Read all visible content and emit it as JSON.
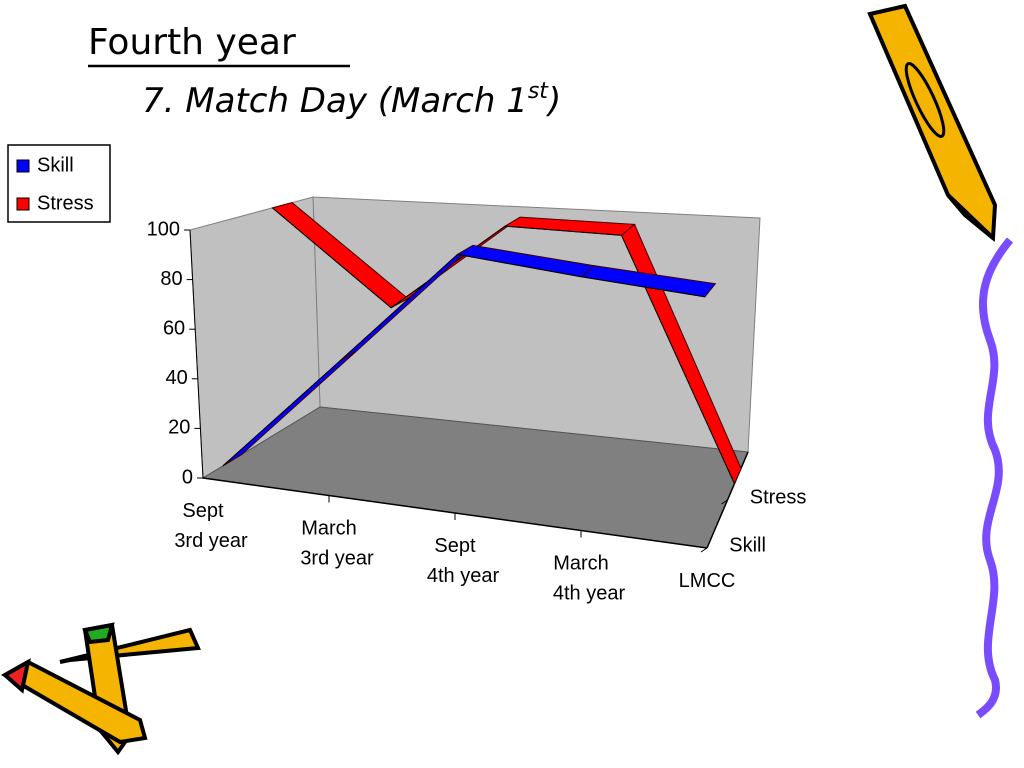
{
  "chart_data": {
    "type": "line3d",
    "title": "Fourth year",
    "subtitle": {
      "text": "7. Match Day (March 1",
      "superscript": "st",
      "end": ")"
    },
    "categories": [
      "Sept\n3rd year",
      "March\n3rd year",
      "Sept\n4th year",
      "March\n4th year",
      "LMCC"
    ],
    "series": [
      {
        "name": "Skill",
        "color": "#0000ff",
        "values": [
          0,
          50,
          100,
          97,
          95
        ]
      },
      {
        "name": "Stress",
        "color": "#ff0000",
        "values": [
          100,
          60,
          100,
          100,
          0
        ]
      }
    ],
    "ylim": [
      0,
      100
    ],
    "yticks": [
      0,
      20,
      40,
      60,
      80,
      100
    ],
    "legend": "left"
  }
}
